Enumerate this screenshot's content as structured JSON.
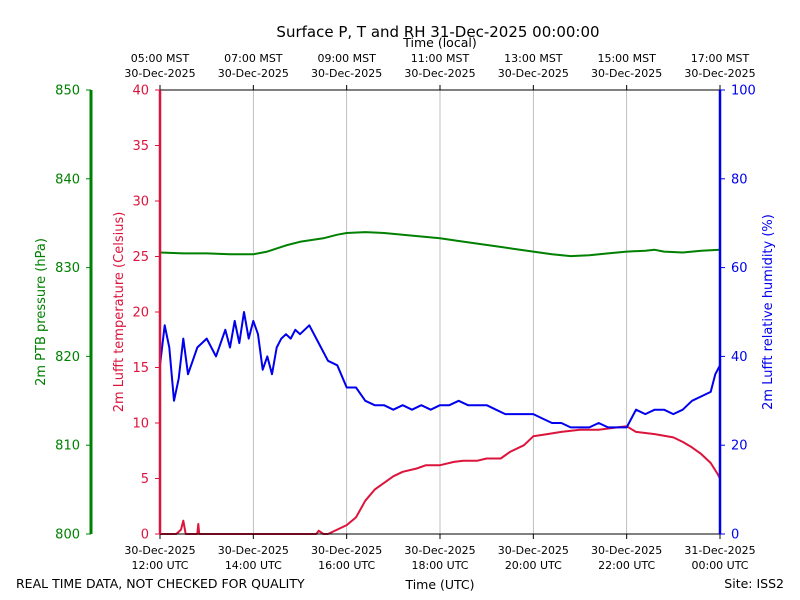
{
  "chart_data": {
    "type": "line",
    "title": "Surface P, T and RH 31-Dec-2025 00:00:00",
    "top_axis_label": "Time (local)",
    "bottom_axis_label": "Time (UTC)",
    "footer_left": "REAL TIME DATA, NOT CHECKED FOR QUALITY",
    "footer_right": "Site: ISS2",
    "xlim": [
      12,
      24
    ],
    "bottom_ticks": [
      {
        "x": 12,
        "line1": "30-Dec-2025",
        "line2": "12:00 UTC"
      },
      {
        "x": 14,
        "line1": "30-Dec-2025",
        "line2": "14:00 UTC"
      },
      {
        "x": 16,
        "line1": "30-Dec-2025",
        "line2": "16:00 UTC"
      },
      {
        "x": 18,
        "line1": "30-Dec-2025",
        "line2": "18:00 UTC"
      },
      {
        "x": 20,
        "line1": "30-Dec-2025",
        "line2": "20:00 UTC"
      },
      {
        "x": 22,
        "line1": "30-Dec-2025",
        "line2": "22:00 UTC"
      },
      {
        "x": 24,
        "line1": "31-Dec-2025",
        "line2": "00:00 UTC"
      }
    ],
    "top_ticks": [
      {
        "x": 12,
        "line1": "05:00 MST",
        "line2": "30-Dec-2025"
      },
      {
        "x": 14,
        "line1": "07:00 MST",
        "line2": "30-Dec-2025"
      },
      {
        "x": 16,
        "line1": "09:00 MST",
        "line2": "30-Dec-2025"
      },
      {
        "x": 18,
        "line1": "11:00 MST",
        "line2": "30-Dec-2025"
      },
      {
        "x": 20,
        "line1": "13:00 MST",
        "line2": "30-Dec-2025"
      },
      {
        "x": 22,
        "line1": "15:00 MST",
        "line2": "30-Dec-2025"
      },
      {
        "x": 24,
        "line1": "17:00 MST",
        "line2": "30-Dec-2025"
      }
    ],
    "grid": "vertical",
    "axes": {
      "pressure": {
        "label": "2m PTB pressure (hPa)",
        "color": "#008000",
        "ylim": [
          800,
          850
        ],
        "ticks": [
          "800",
          "810",
          "820",
          "830",
          "840",
          "850"
        ]
      },
      "temperature": {
        "label": "2m Lufft temperature (Celsius)",
        "color": "#dc143c",
        "ylim": [
          0,
          40
        ],
        "ticks": [
          "0",
          "5",
          "10",
          "15",
          "20",
          "25",
          "30",
          "35",
          "40"
        ]
      },
      "humidity": {
        "label": "2m Lufft relative humidity (%)",
        "color": "#0000ee",
        "ylim": [
          0,
          100
        ],
        "ticks": [
          "0",
          "20",
          "40",
          "60",
          "80",
          "100"
        ]
      }
    },
    "series": [
      {
        "name": "2m PTB pressure (hPa)",
        "axis": "pressure",
        "x": [
          12,
          12.5,
          13,
          13.5,
          14,
          14.3,
          14.7,
          15,
          15.5,
          15.8,
          16,
          16.4,
          16.8,
          17.2,
          17.6,
          18,
          18.4,
          18.8,
          19.2,
          19.6,
          20,
          20.4,
          20.8,
          21.2,
          21.6,
          22,
          22.4,
          22.6,
          22.8,
          23.2,
          23.6,
          24
        ],
        "values": [
          831.7,
          831.6,
          831.6,
          831.5,
          831.5,
          831.8,
          832.5,
          832.9,
          833.3,
          833.7,
          833.9,
          834.0,
          833.9,
          833.7,
          833.5,
          833.3,
          833.0,
          832.7,
          832.4,
          832.1,
          831.8,
          831.5,
          831.3,
          831.4,
          831.6,
          831.8,
          831.9,
          832.0,
          831.8,
          831.7,
          831.9,
          832.0
        ]
      },
      {
        "name": "2m Lufft temperature (Celsius)",
        "axis": "temperature",
        "x": [
          12,
          12.35,
          12.45,
          12.5,
          12.55,
          12.8,
          12.82,
          12.84,
          12.86,
          15.35,
          15.4,
          15.5,
          15.6,
          16,
          16.2,
          16.4,
          16.6,
          16.8,
          17,
          17.2,
          17.5,
          17.7,
          18,
          18.3,
          18.5,
          18.8,
          19,
          19.3,
          19.5,
          19.8,
          20,
          20.3,
          20.6,
          21,
          21.4,
          21.8,
          22,
          22.2,
          22.6,
          23,
          23.2,
          23.4,
          23.6,
          23.8,
          23.95,
          24
        ],
        "values": [
          0,
          0,
          0.4,
          1.2,
          0,
          0,
          0.9,
          0,
          0,
          0,
          0.3,
          0,
          0,
          0.8,
          1.5,
          3.0,
          4.0,
          4.6,
          5.2,
          5.6,
          5.9,
          6.2,
          6.2,
          6.5,
          6.6,
          6.6,
          6.8,
          6.8,
          7.4,
          8.0,
          8.8,
          9.0,
          9.2,
          9.4,
          9.4,
          9.6,
          9.7,
          9.2,
          9.0,
          8.7,
          8.3,
          7.8,
          7.2,
          6.4,
          5.4,
          5.0
        ]
      },
      {
        "name": "2m Lufft relative humidity (%)",
        "axis": "humidity",
        "x": [
          12,
          12.1,
          12.2,
          12.3,
          12.4,
          12.5,
          12.6,
          12.7,
          12.8,
          13.0,
          13.2,
          13.4,
          13.5,
          13.6,
          13.7,
          13.8,
          13.9,
          14,
          14.1,
          14.2,
          14.3,
          14.4,
          14.5,
          14.6,
          14.7,
          14.8,
          14.9,
          15.0,
          15.2,
          15.4,
          15.6,
          15.8,
          16,
          16.2,
          16.4,
          16.6,
          16.8,
          17.0,
          17.2,
          17.4,
          17.6,
          17.8,
          18.0,
          18.2,
          18.4,
          18.6,
          18.8,
          19.0,
          19.2,
          19.4,
          19.6,
          19.8,
          20.0,
          20.2,
          20.4,
          20.6,
          20.8,
          21.0,
          21.2,
          21.4,
          21.6,
          21.8,
          22.0,
          22.1,
          22.2,
          22.4,
          22.6,
          22.8,
          23.0,
          23.2,
          23.4,
          23.6,
          23.8,
          23.9,
          24
        ],
        "values": [
          38,
          47,
          42,
          30,
          35,
          44,
          36,
          39,
          42,
          44,
          40,
          46,
          42,
          48,
          43,
          50,
          44,
          48,
          45,
          37,
          40,
          36,
          42,
          44,
          45,
          44,
          46,
          45,
          47,
          43,
          39,
          38,
          33,
          33,
          30,
          29,
          29,
          28,
          29,
          28,
          29,
          28,
          29,
          29,
          30,
          29,
          29,
          29,
          28,
          27,
          27,
          27,
          27,
          26,
          25,
          25,
          24,
          24,
          24,
          25,
          24,
          24,
          24,
          26,
          28,
          27,
          28,
          28,
          27,
          28,
          30,
          31,
          32,
          36,
          38
        ]
      }
    ]
  }
}
